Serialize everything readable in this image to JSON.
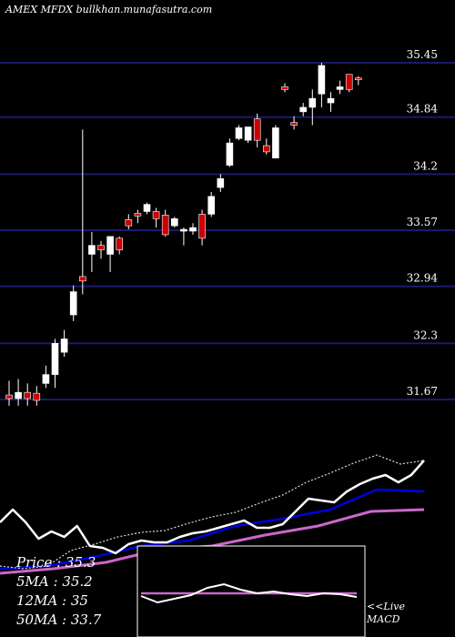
{
  "header": {
    "title": "AMEX  MFDX  bullkhan.munafasutra.com"
  },
  "legend": {
    "price": "Price   :  35.3",
    "ma5": "5MA : 35.2",
    "ma12": "12MA : 35",
    "ma50": "50MA : 33.7"
  },
  "macd_panel": {
    "live_label": "<<Live",
    "macd_label": "MACD"
  },
  "colors": {
    "background": "#000000",
    "gridline": "#1a1a70",
    "bull_candle": "#ffffff",
    "bear_candle": "#cc0000",
    "price_line": "#ffffff",
    "ma5": "#dddddd",
    "ma12": "#0000dd",
    "ma50": "#cc66cc",
    "macd_line": "#ffffff",
    "macd_signal": "#cc66cc"
  },
  "chart_data": {
    "type": "candlestick",
    "title": "AMEX  MFDX  bullkhan.munafasutra.com",
    "y_ticks": [
      "35.45",
      "34.84",
      "34.2",
      "33.57",
      "32.94",
      "32.3",
      "31.67"
    ],
    "y_tick_values": [
      35.45,
      34.84,
      34.2,
      33.57,
      32.94,
      32.3,
      31.67
    ],
    "ylim": [
      31.55,
      35.6
    ],
    "grid": true,
    "candles": [
      {
        "o": 31.72,
        "h": 31.88,
        "l": 31.6,
        "c": 31.68
      },
      {
        "o": 31.68,
        "h": 31.9,
        "l": 31.6,
        "c": 31.75
      },
      {
        "o": 31.75,
        "h": 31.85,
        "l": 31.6,
        "c": 31.68
      },
      {
        "o": 31.74,
        "h": 31.82,
        "l": 31.6,
        "c": 31.66
      },
      {
        "o": 31.85,
        "h": 32.05,
        "l": 31.8,
        "c": 31.95
      },
      {
        "o": 31.95,
        "h": 32.35,
        "l": 31.8,
        "c": 32.3
      },
      {
        "o": 32.2,
        "h": 32.45,
        "l": 32.15,
        "c": 32.35
      },
      {
        "o": 32.62,
        "h": 32.95,
        "l": 32.55,
        "c": 32.88
      },
      {
        "o": 33.05,
        "h": 34.7,
        "l": 32.85,
        "c": 33.0
      },
      {
        "o": 33.3,
        "h": 33.55,
        "l": 33.1,
        "c": 33.4
      },
      {
        "o": 33.4,
        "h": 33.45,
        "l": 33.25,
        "c": 33.35
      },
      {
        "o": 33.3,
        "h": 33.5,
        "l": 33.1,
        "c": 33.5
      },
      {
        "o": 33.48,
        "h": 33.5,
        "l": 33.3,
        "c": 33.35
      },
      {
        "o": 33.69,
        "h": 33.75,
        "l": 33.58,
        "c": 33.62
      },
      {
        "o": 33.76,
        "h": 33.8,
        "l": 33.65,
        "c": 33.73
      },
      {
        "o": 33.78,
        "h": 33.88,
        "l": 33.75,
        "c": 33.86
      },
      {
        "o": 33.78,
        "h": 33.82,
        "l": 33.6,
        "c": 33.7
      },
      {
        "o": 33.74,
        "h": 33.8,
        "l": 33.5,
        "c": 33.52
      },
      {
        "o": 33.62,
        "h": 33.72,
        "l": 33.6,
        "c": 33.7
      },
      {
        "o": 33.57,
        "h": 33.6,
        "l": 33.4,
        "c": 33.58
      },
      {
        "o": 33.56,
        "h": 33.65,
        "l": 33.52,
        "c": 33.6
      },
      {
        "o": 33.75,
        "h": 33.8,
        "l": 33.4,
        "c": 33.48
      },
      {
        "o": 33.75,
        "h": 34.0,
        "l": 33.72,
        "c": 33.95
      },
      {
        "o": 34.05,
        "h": 34.2,
        "l": 34.0,
        "c": 34.15
      },
      {
        "o": 34.3,
        "h": 34.6,
        "l": 34.28,
        "c": 34.55
      },
      {
        "o": 34.6,
        "h": 34.75,
        "l": 34.58,
        "c": 34.72
      },
      {
        "o": 34.58,
        "h": 34.72,
        "l": 34.55,
        "c": 34.73
      },
      {
        "o": 34.82,
        "h": 34.88,
        "l": 34.5,
        "c": 34.58
      },
      {
        "o": 34.52,
        "h": 34.6,
        "l": 34.42,
        "c": 34.45
      },
      {
        "o": 34.38,
        "h": 34.75,
        "l": 34.38,
        "c": 34.72
      },
      {
        "o": 35.18,
        "h": 35.22,
        "l": 35.12,
        "c": 35.15
      },
      {
        "o": 34.78,
        "h": 34.85,
        "l": 34.7,
        "c": 34.75
      },
      {
        "o": 34.9,
        "h": 35.0,
        "l": 34.85,
        "c": 34.95
      },
      {
        "o": 34.95,
        "h": 35.15,
        "l": 34.75,
        "c": 35.05
      },
      {
        "o": 35.1,
        "h": 35.45,
        "l": 34.95,
        "c": 35.42
      },
      {
        "o": 35.0,
        "h": 35.12,
        "l": 34.9,
        "c": 35.05
      },
      {
        "o": 35.15,
        "h": 35.25,
        "l": 35.1,
        "c": 35.18
      },
      {
        "o": 35.32,
        "h": 35.32,
        "l": 35.12,
        "c": 35.15
      },
      {
        "o": 35.28,
        "h": 35.3,
        "l": 35.2,
        "c": 35.26
      }
    ],
    "indicator_lines": {
      "price": [
        574,
        560,
        574,
        592,
        584,
        590,
        578,
        600,
        602,
        608,
        598,
        594,
        596,
        596,
        590,
        586,
        584,
        580,
        576,
        572,
        580,
        580,
        576,
        562,
        548,
        550,
        552,
        540,
        532,
        526,
        522,
        530,
        522,
        506
      ],
      "ma5": [
        622,
        625,
        622,
        605,
        598,
        590,
        585,
        583,
        575,
        568,
        563,
        553,
        544,
        530,
        520,
        509,
        500,
        510,
        506
      ],
      "ma12": [
        625,
        622,
        612,
        600,
        594,
        578,
        570,
        560,
        538,
        540
      ],
      "ma50": [
        630,
        625,
        618,
        604,
        600,
        588,
        578,
        562,
        560
      ]
    },
    "macd": {
      "line": [
        55,
        62,
        58,
        54,
        46,
        42,
        48,
        52,
        50,
        53,
        55,
        52,
        53,
        56
      ],
      "signal": [
        52,
        52,
        52,
        52,
        52,
        52,
        52,
        52,
        52,
        52,
        52
      ]
    }
  }
}
